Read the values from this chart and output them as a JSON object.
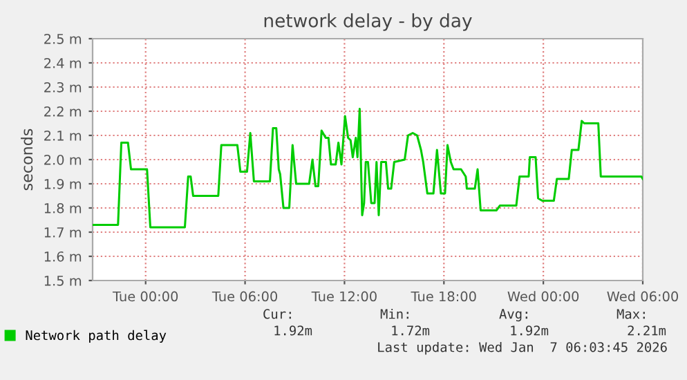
{
  "chart_data": {
    "type": "line",
    "title": "network delay - by day",
    "ylabel": "seconds",
    "xlim": [
      "2026-01-05T20:48",
      "2026-01-07T06:00"
    ],
    "xticks": [
      {
        "value": "2026-01-06T00:00",
        "label": "Tue 00:00"
      },
      {
        "value": "2026-01-06T06:00",
        "label": "Tue 06:00"
      },
      {
        "value": "2026-01-06T12:00",
        "label": "Tue 12:00"
      },
      {
        "value": "2026-01-06T18:00",
        "label": "Tue 18:00"
      },
      {
        "value": "2026-01-07T00:00",
        "label": "Wed 00:00"
      },
      {
        "value": "2026-01-07T06:00",
        "label": "Wed 06:00"
      }
    ],
    "ylim": [
      1.5,
      2.5
    ],
    "yticks": [
      {
        "value": 1.5,
        "label": "1.5 m"
      },
      {
        "value": 1.6,
        "label": "1.6 m"
      },
      {
        "value": 1.7,
        "label": "1.7 m"
      },
      {
        "value": 1.8,
        "label": "1.8 m"
      },
      {
        "value": 1.9,
        "label": "1.9 m"
      },
      {
        "value": 2.0,
        "label": "2.0 m"
      },
      {
        "value": 2.1,
        "label": "2.1 m"
      },
      {
        "value": 2.2,
        "label": "2.2 m"
      },
      {
        "value": 2.3,
        "label": "2.3 m"
      },
      {
        "value": 2.4,
        "label": "2.4 m"
      },
      {
        "value": 2.5,
        "label": "2.5 m"
      }
    ],
    "grid": true,
    "legend": "bottom",
    "series": [
      {
        "name": "Network path delay",
        "color": "#00cc00",
        "x": [
          "2026-01-05T20:48",
          "2026-01-05T22:20",
          "2026-01-05T22:32",
          "2026-01-05T22:56",
          "2026-01-05T23:07",
          "2026-01-06T00:05",
          "2026-01-06T00:17",
          "2026-01-06T02:22",
          "2026-01-06T02:34",
          "2026-01-06T02:43",
          "2026-01-06T02:52",
          "2026-01-06T04:23",
          "2026-01-06T04:34",
          "2026-01-06T05:32",
          "2026-01-06T05:43",
          "2026-01-06T06:07",
          "2026-01-06T06:19",
          "2026-01-06T06:32",
          "2026-01-06T07:30",
          "2026-01-06T07:41",
          "2026-01-06T07:53",
          "2026-01-06T08:02",
          "2026-01-06T08:07",
          "2026-01-06T08:19",
          "2026-01-06T08:40",
          "2026-01-06T08:52",
          "2026-01-06T09:05",
          "2026-01-06T09:52",
          "2026-01-06T10:04",
          "2026-01-06T10:15",
          "2026-01-06T10:25",
          "2026-01-06T10:37",
          "2026-01-06T10:52",
          "2026-01-06T11:02",
          "2026-01-06T11:11",
          "2026-01-06T11:28",
          "2026-01-06T11:38",
          "2026-01-06T11:49",
          "2026-01-06T12:02",
          "2026-01-06T12:13",
          "2026-01-06T12:22",
          "2026-01-06T12:30",
          "2026-01-06T12:41",
          "2026-01-06T12:47",
          "2026-01-06T12:55",
          "2026-01-06T13:04",
          "2026-01-06T13:11",
          "2026-01-06T13:17",
          "2026-01-06T13:25",
          "2026-01-06T13:37",
          "2026-01-06T13:49",
          "2026-01-06T13:56",
          "2026-01-06T14:04",
          "2026-01-06T14:13",
          "2026-01-06T14:30",
          "2026-01-06T14:38",
          "2026-01-06T14:49",
          "2026-01-06T15:00",
          "2026-01-06T15:38",
          "2026-01-06T15:50",
          "2026-01-06T16:07",
          "2026-01-06T16:23",
          "2026-01-06T16:37",
          "2026-01-06T16:45",
          "2026-01-06T17:00",
          "2026-01-06T17:22",
          "2026-01-06T17:35",
          "2026-01-06T17:49",
          "2026-01-06T18:04",
          "2026-01-06T18:13",
          "2026-01-06T18:25",
          "2026-01-06T18:35",
          "2026-01-06T19:02",
          "2026-01-06T19:19",
          "2026-01-06T19:23",
          "2026-01-06T19:52",
          "2026-01-06T20:02",
          "2026-01-06T20:13",
          "2026-01-06T21:10",
          "2026-01-06T21:23",
          "2026-01-06T22:22",
          "2026-01-06T22:34",
          "2026-01-06T23:07",
          "2026-01-06T23:11",
          "2026-01-06T23:32",
          "2026-01-06T23:41",
          "2026-01-06T23:56",
          "2026-01-07T00:38",
          "2026-01-07T00:49",
          "2026-01-07T01:32",
          "2026-01-07T01:43",
          "2026-01-07T02:07",
          "2026-01-07T02:19",
          "2026-01-07T02:28",
          "2026-01-07T03:19",
          "2026-01-07T03:28",
          "2026-01-07T05:55",
          "2026-01-07T06:00"
        ],
        "values": [
          1.73,
          1.73,
          2.07,
          2.07,
          1.96,
          1.96,
          1.72,
          1.72,
          1.93,
          1.93,
          1.85,
          1.85,
          2.06,
          2.06,
          1.95,
          1.95,
          2.11,
          1.91,
          1.91,
          2.13,
          2.13,
          1.96,
          1.94,
          1.8,
          1.8,
          2.06,
          1.9,
          1.9,
          2.0,
          1.89,
          1.89,
          2.12,
          2.09,
          2.09,
          1.98,
          1.98,
          2.07,
          1.98,
          2.18,
          2.09,
          2.08,
          2.01,
          2.09,
          2.01,
          2.21,
          1.77,
          1.82,
          1.99,
          1.99,
          1.82,
          1.82,
          1.99,
          1.77,
          1.99,
          1.99,
          1.88,
          1.88,
          1.99,
          2.0,
          2.1,
          2.11,
          2.1,
          2.04,
          1.99,
          1.86,
          1.86,
          2.04,
          1.86,
          1.86,
          2.06,
          1.99,
          1.96,
          1.96,
          1.93,
          1.88,
          1.88,
          1.96,
          1.79,
          1.79,
          1.81,
          1.81,
          1.93,
          1.93,
          2.01,
          2.01,
          1.84,
          1.83,
          1.83,
          1.92,
          1.92,
          2.04,
          2.04,
          2.16,
          2.15,
          2.15,
          1.93,
          1.93,
          1.92
        ]
      }
    ],
    "annotations": [
      "Cur:",
      "Min:",
      "Avg:",
      "Max:",
      "1.92m",
      "1.72m",
      "1.92m",
      "2.21m",
      "Last update: Wed Jan  7 06:03:45 2026"
    ]
  }
}
